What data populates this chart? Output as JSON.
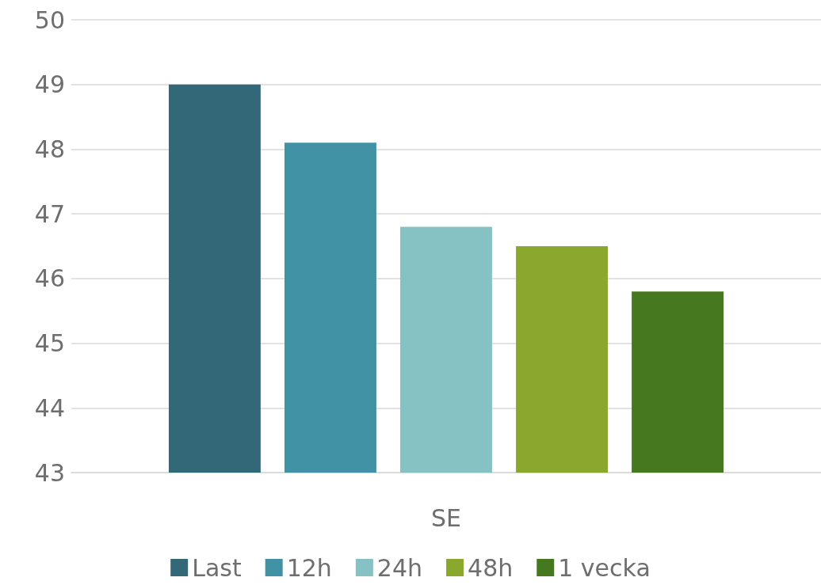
{
  "chart_data": {
    "type": "bar",
    "categories": [
      "SE"
    ],
    "series": [
      {
        "name": "Last",
        "color": "#336879",
        "values": [
          49.0
        ]
      },
      {
        "name": "12h",
        "color": "#4292a6",
        "values": [
          48.1
        ]
      },
      {
        "name": "24h",
        "color": "#86c1c4",
        "values": [
          46.8
        ]
      },
      {
        "name": "48h",
        "color": "#8aa72e",
        "values": [
          46.5
        ]
      },
      {
        "name": "1 vecka",
        "color": "#467820",
        "values": [
          45.8
        ]
      }
    ],
    "ylim": [
      43,
      50
    ],
    "yticks": [
      43,
      44,
      45,
      46,
      47,
      48,
      49,
      50
    ],
    "grid": "y",
    "legend": "bottom"
  }
}
